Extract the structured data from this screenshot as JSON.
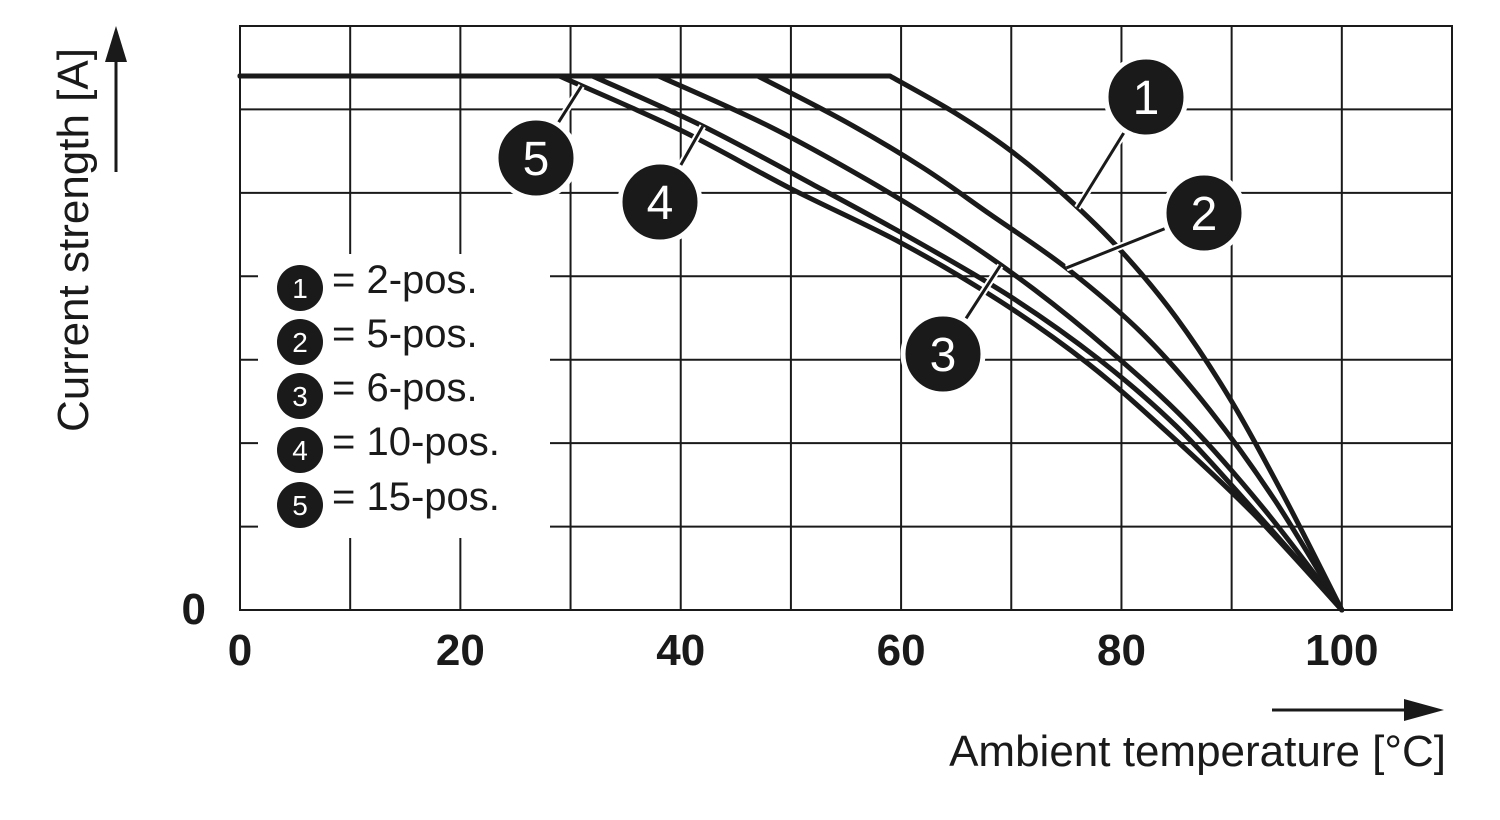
{
  "chart_data": {
    "type": "line",
    "xlabel": "Ambient temperature [°C]",
    "ylabel": "Current strength [A]",
    "xlim": [
      0,
      110
    ],
    "ylim": [
      0,
      7
    ],
    "x_ticks": [
      "0",
      "20",
      "40",
      "60",
      "80",
      "100"
    ],
    "y_ticks": [
      "0"
    ],
    "grid": true,
    "legend_position": "left-middle",
    "series": [
      {
        "marker": "1",
        "name": "= 2-pos.",
        "points": [
          [
            0,
            6.4
          ],
          [
            59,
            6.4
          ],
          [
            65,
            5.95
          ],
          [
            70,
            5.5
          ],
          [
            75,
            4.95
          ],
          [
            80,
            4.3
          ],
          [
            85,
            3.5
          ],
          [
            90,
            2.5
          ],
          [
            95,
            1.3
          ],
          [
            100,
            0
          ]
        ]
      },
      {
        "marker": "2",
        "name": "= 5-pos.",
        "points": [
          [
            0,
            6.4
          ],
          [
            47,
            6.4
          ],
          [
            55,
            5.85
          ],
          [
            62,
            5.3
          ],
          [
            68,
            4.75
          ],
          [
            75,
            4.1
          ],
          [
            82,
            3.3
          ],
          [
            88,
            2.4
          ],
          [
            94,
            1.3
          ],
          [
            100,
            0
          ]
        ]
      },
      {
        "marker": "3",
        "name": "= 6-pos.",
        "points": [
          [
            0,
            6.4
          ],
          [
            38,
            6.4
          ],
          [
            48,
            5.8
          ],
          [
            57,
            5.15
          ],
          [
            65,
            4.5
          ],
          [
            72,
            3.85
          ],
          [
            79,
            3.1
          ],
          [
            86,
            2.25
          ],
          [
            93,
            1.2
          ],
          [
            100,
            0
          ]
        ]
      },
      {
        "marker": "4",
        "name": "= 10-pos.",
        "points": [
          [
            0,
            6.4
          ],
          [
            32,
            6.4
          ],
          [
            42,
            5.8
          ],
          [
            52,
            5.1
          ],
          [
            61,
            4.45
          ],
          [
            70,
            3.75
          ],
          [
            78,
            3.0
          ],
          [
            85,
            2.2
          ],
          [
            92,
            1.2
          ],
          [
            100,
            0
          ]
        ]
      },
      {
        "marker": "5",
        "name": "= 15-pos.",
        "points": [
          [
            0,
            6.4
          ],
          [
            29,
            6.4
          ],
          [
            40,
            5.75
          ],
          [
            50,
            5.05
          ],
          [
            60,
            4.4
          ],
          [
            69,
            3.7
          ],
          [
            77,
            2.95
          ],
          [
            84,
            2.15
          ],
          [
            92,
            1.15
          ],
          [
            100,
            0
          ]
        ]
      }
    ],
    "callouts": [
      {
        "label": "1",
        "series": 0,
        "at_x": 76
      },
      {
        "label": "2",
        "series": 1,
        "at_x": 75
      },
      {
        "label": "3",
        "series": 2,
        "at_x": 69
      },
      {
        "label": "4",
        "series": 3,
        "at_x": 42
      },
      {
        "label": "5",
        "series": 4,
        "at_x": 31
      }
    ],
    "legend": [
      {
        "marker": "1",
        "text": "= 2-pos."
      },
      {
        "marker": "2",
        "text": "= 5-pos."
      },
      {
        "marker": "3",
        "text": "= 6-pos."
      },
      {
        "marker": "4",
        "text": "= 10-pos."
      },
      {
        "marker": "5",
        "text": "= 15-pos."
      }
    ]
  }
}
